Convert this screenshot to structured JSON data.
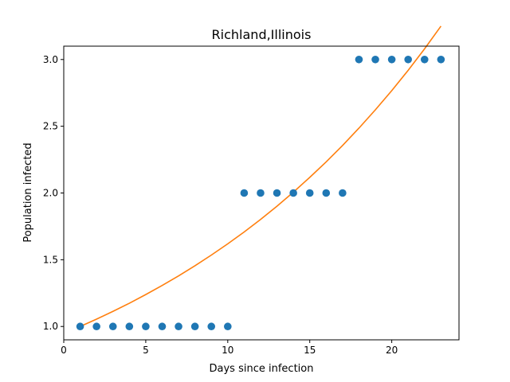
{
  "chart_data": {
    "type": "scatter",
    "title": "Richland,Illinois",
    "xlabel": "Days since infection",
    "ylabel": "Population infected",
    "xlim": [
      0,
      24.1
    ],
    "ylim": [
      0.9,
      3.1
    ],
    "xticks": [
      0,
      5,
      10,
      15,
      20
    ],
    "xtick_labels": [
      "0",
      "5",
      "10",
      "15",
      "20"
    ],
    "yticks": [
      1.0,
      1.5,
      2.0,
      2.5,
      3.0
    ],
    "ytick_labels": [
      "1.0",
      "1.5",
      "2.0",
      "2.5",
      "3.0"
    ],
    "grid": false,
    "series": [
      {
        "kind": "scatter",
        "color": "#1f77b4",
        "x": [
          1,
          2,
          3,
          4,
          5,
          6,
          7,
          8,
          9,
          10,
          11,
          12,
          13,
          14,
          15,
          16,
          17,
          18,
          19,
          20,
          21,
          22,
          23
        ],
        "y": [
          1,
          1,
          1,
          1,
          1,
          1,
          1,
          1,
          1,
          1,
          2,
          2,
          2,
          2,
          2,
          2,
          2,
          3,
          3,
          3,
          3,
          3,
          3
        ]
      },
      {
        "kind": "line",
        "color": "#ff7f0e",
        "x": [
          1,
          2,
          3,
          4,
          5,
          6,
          7,
          8,
          9,
          10,
          11,
          12,
          13,
          14,
          15,
          16,
          17,
          18,
          19,
          20,
          21,
          22,
          23
        ],
        "y": [
          1.0,
          1.055,
          1.113,
          1.174,
          1.239,
          1.307,
          1.379,
          1.455,
          1.535,
          1.619,
          1.708,
          1.802,
          1.901,
          2.006,
          2.117,
          2.233,
          2.356,
          2.486,
          2.623,
          2.767,
          2.919,
          3.08,
          3.25
        ]
      }
    ]
  }
}
